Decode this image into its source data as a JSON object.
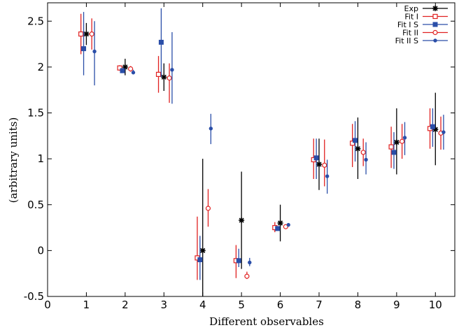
{
  "chart_data": {
    "type": "scatter",
    "xlabel": "Different observables",
    "ylabel": "(arbitrary units)",
    "xlim": [
      0,
      10.5
    ],
    "ylim": [
      -0.5,
      2.7
    ],
    "xticks": [
      "0",
      "1",
      "2",
      "3",
      "4",
      "5",
      "6",
      "7",
      "8",
      "9",
      "10"
    ],
    "yticks": [
      "-0.5",
      "0",
      "0.5",
      "1",
      "1.5",
      "2",
      "2.5"
    ],
    "ytick_values": [
      -0.5,
      0,
      0.5,
      1,
      1.5,
      2,
      2.5
    ],
    "grid": false,
    "legend_position": "top-right",
    "series": [
      {
        "name": "Exp",
        "color": "#000000",
        "marker": "asterisk",
        "offset": 0.0,
        "points": [
          {
            "x": 1,
            "y": 2.36,
            "lo": 2.24,
            "hi": 2.48
          },
          {
            "x": 2,
            "y": 2.0,
            "lo": 1.91,
            "hi": 2.09
          },
          {
            "x": 3,
            "y": 1.89,
            "lo": 1.74,
            "hi": 2.04
          },
          {
            "x": 4,
            "y": 0.0,
            "lo": -1.0,
            "hi": 1.0
          },
          {
            "x": 5,
            "y": 0.33,
            "lo": -0.2,
            "hi": 0.86
          },
          {
            "x": 6,
            "y": 0.3,
            "lo": 0.1,
            "hi": 0.5
          },
          {
            "x": 7,
            "y": 0.94,
            "lo": 0.66,
            "hi": 1.22
          },
          {
            "x": 8,
            "y": 1.11,
            "lo": 0.78,
            "hi": 1.45
          },
          {
            "x": 9,
            "y": 1.18,
            "lo": 0.83,
            "hi": 1.55
          },
          {
            "x": 10,
            "y": 1.32,
            "lo": 0.93,
            "hi": 1.72
          }
        ]
      },
      {
        "name": "Fit I",
        "color": "#e02020",
        "marker": "open-square",
        "offset": -0.14,
        "points": [
          {
            "x": 1,
            "y": 2.36,
            "lo": 2.14,
            "hi": 2.58
          },
          {
            "x": 2,
            "y": 1.99,
            "lo": 1.96,
            "hi": 2.02
          },
          {
            "x": 3,
            "y": 1.92,
            "lo": 1.72,
            "hi": 2.12
          },
          {
            "x": 4,
            "y": -0.08,
            "lo": -0.32,
            "hi": 0.37
          },
          {
            "x": 5,
            "y": -0.11,
            "lo": -0.3,
            "hi": 0.06
          },
          {
            "x": 6,
            "y": 0.25,
            "lo": 0.2,
            "hi": 0.31
          },
          {
            "x": 7,
            "y": 0.99,
            "lo": 0.78,
            "hi": 1.22
          },
          {
            "x": 8,
            "y": 1.17,
            "lo": 0.91,
            "hi": 1.38
          },
          {
            "x": 9,
            "y": 1.13,
            "lo": 0.9,
            "hi": 1.35
          },
          {
            "x": 10,
            "y": 1.33,
            "lo": 1.11,
            "hi": 1.55
          }
        ]
      },
      {
        "name": "Fit I S",
        "color": "#2a4ea8",
        "marker": "filled-square",
        "offset": -0.07,
        "points": [
          {
            "x": 1,
            "y": 2.2,
            "lo": 1.91,
            "hi": 2.6
          },
          {
            "x": 2,
            "y": 1.96,
            "lo": 1.95,
            "hi": 1.99
          },
          {
            "x": 3,
            "y": 2.27,
            "lo": 1.89,
            "hi": 2.64
          },
          {
            "x": 4,
            "y": -0.1,
            "lo": -0.32,
            "hi": 0.16
          },
          {
            "x": 5,
            "y": -0.11,
            "lo": -0.18,
            "hi": 0.02
          },
          {
            "x": 6,
            "y": 0.24,
            "lo": 0.22,
            "hi": 0.26
          },
          {
            "x": 7,
            "y": 1.01,
            "lo": 0.78,
            "hi": 1.22
          },
          {
            "x": 8,
            "y": 1.2,
            "lo": 0.97,
            "hi": 1.41
          },
          {
            "x": 9,
            "y": 1.07,
            "lo": 0.89,
            "hi": 1.29
          },
          {
            "x": 10,
            "y": 1.35,
            "lo": 1.13,
            "hi": 1.55
          }
        ]
      },
      {
        "name": "Fit II",
        "color": "#e02020",
        "marker": "open-circle",
        "offset": 0.14,
        "points": [
          {
            "x": 1,
            "y": 2.36,
            "lo": 2.19,
            "hi": 2.53
          },
          {
            "x": 2,
            "y": 1.98,
            "lo": 1.95,
            "hi": 2.01
          },
          {
            "x": 3,
            "y": 1.88,
            "lo": 1.61,
            "hi": 2.04
          },
          {
            "x": 4,
            "y": 0.46,
            "lo": 0.26,
            "hi": 0.67
          },
          {
            "x": 5,
            "y": -0.28,
            "lo": -0.31,
            "hi": -0.23
          },
          {
            "x": 6,
            "y": 0.26,
            "lo": 0.25,
            "hi": 0.28
          },
          {
            "x": 7,
            "y": 0.93,
            "lo": 0.7,
            "hi": 1.21
          },
          {
            "x": 8,
            "y": 1.07,
            "lo": 0.92,
            "hi": 1.22
          },
          {
            "x": 9,
            "y": 1.19,
            "lo": 1.0,
            "hi": 1.38
          },
          {
            "x": 10,
            "y": 1.28,
            "lo": 1.1,
            "hi": 1.46
          }
        ]
      },
      {
        "name": "Fit II S",
        "color": "#2a4ea8",
        "marker": "filled-circle",
        "offset": 0.21,
        "points": [
          {
            "x": 1,
            "y": 2.17,
            "lo": 1.8,
            "hi": 2.5
          },
          {
            "x": 2,
            "y": 1.94,
            "lo": 1.92,
            "hi": 1.97
          },
          {
            "x": 3,
            "y": 1.97,
            "lo": 1.6,
            "hi": 2.38
          },
          {
            "x": 4,
            "y": 1.33,
            "lo": 1.16,
            "hi": 1.49
          },
          {
            "x": 5,
            "y": -0.13,
            "lo": -0.17,
            "hi": -0.08
          },
          {
            "x": 6,
            "y": 0.28,
            "lo": 0.27,
            "hi": 0.3
          },
          {
            "x": 7,
            "y": 0.81,
            "lo": 0.62,
            "hi": 0.99
          },
          {
            "x": 8,
            "y": 0.99,
            "lo": 0.83,
            "hi": 1.18
          },
          {
            "x": 9,
            "y": 1.23,
            "lo": 1.04,
            "hi": 1.4
          },
          {
            "x": 10,
            "y": 1.29,
            "lo": 1.1,
            "hi": 1.48
          }
        ]
      }
    ]
  }
}
